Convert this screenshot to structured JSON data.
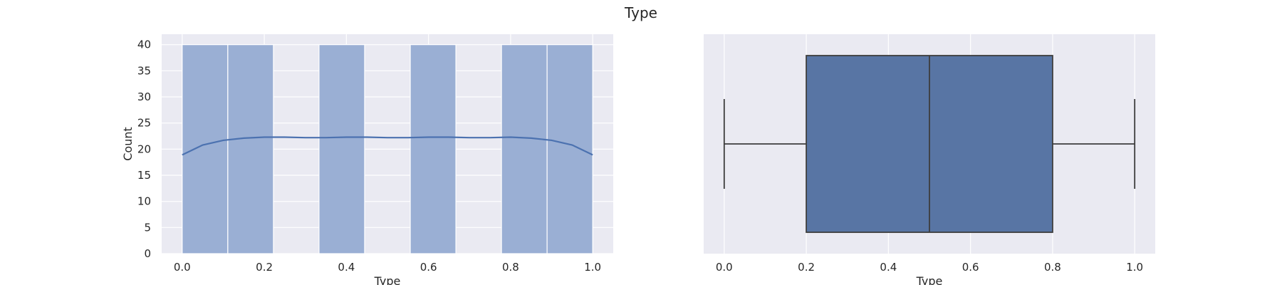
{
  "figure": {
    "title": "Type"
  },
  "colors": {
    "background": "#eaeaf2",
    "grid": "#ffffff",
    "bar": "#9aafd4",
    "line": "#4c72b0",
    "box": "#5875a4",
    "edge": "#3d3d3d"
  },
  "chart_data": [
    {
      "type": "bar",
      "subtype": "histogram_with_kde",
      "xlabel": "Type",
      "ylabel": "Count",
      "xlim": [
        -0.05,
        1.05
      ],
      "ylim": [
        0,
        42
      ],
      "grid": true,
      "xticks": [
        0.0,
        0.2,
        0.4,
        0.6,
        0.8,
        1.0
      ],
      "xtick_labels": [
        "0.0",
        "0.2",
        "0.4",
        "0.6",
        "0.8",
        "1.0"
      ],
      "yticks": [
        0,
        5,
        10,
        15,
        20,
        25,
        30,
        35,
        40
      ],
      "yticks_labels": [
        "0",
        "5",
        "10",
        "15",
        "20",
        "25",
        "30",
        "35",
        "40"
      ],
      "bins": [
        {
          "x0": 0.0,
          "x1": 0.1111,
          "count": 40
        },
        {
          "x0": 0.1111,
          "x1": 0.2222,
          "count": 40
        },
        {
          "x0": 0.2222,
          "x1": 0.3333,
          "count": 0
        },
        {
          "x0": 0.3333,
          "x1": 0.4444,
          "count": 40
        },
        {
          "x0": 0.4444,
          "x1": 0.5556,
          "count": 0
        },
        {
          "x0": 0.5556,
          "x1": 0.6667,
          "count": 40
        },
        {
          "x0": 0.6667,
          "x1": 0.7778,
          "count": 0
        },
        {
          "x0": 0.7778,
          "x1": 0.8889,
          "count": 40
        },
        {
          "x0": 0.8889,
          "x1": 1.0,
          "count": 40
        }
      ],
      "kde": {
        "x": [
          0.0,
          0.05,
          0.1,
          0.15,
          0.2,
          0.25,
          0.3,
          0.35,
          0.4,
          0.45,
          0.5,
          0.55,
          0.6,
          0.65,
          0.7,
          0.75,
          0.8,
          0.85,
          0.9,
          0.95,
          1.0
        ],
        "y": [
          18.9,
          20.8,
          21.7,
          22.1,
          22.3,
          22.3,
          22.2,
          22.2,
          22.3,
          22.3,
          22.2,
          22.2,
          22.3,
          22.3,
          22.2,
          22.2,
          22.3,
          22.1,
          21.7,
          20.8,
          18.9
        ]
      }
    },
    {
      "type": "box",
      "xlabel": "Type",
      "xlim": [
        -0.05,
        1.05
      ],
      "grid": true,
      "xticks": [
        0.0,
        0.2,
        0.4,
        0.6,
        0.8,
        1.0
      ],
      "xtick_labels": [
        "0.0",
        "0.2",
        "0.4",
        "0.6",
        "0.8",
        "1.0"
      ],
      "box": {
        "whislo": 0.0,
        "q1": 0.2,
        "median": 0.5,
        "q3": 0.8,
        "whishi": 1.0
      }
    }
  ]
}
